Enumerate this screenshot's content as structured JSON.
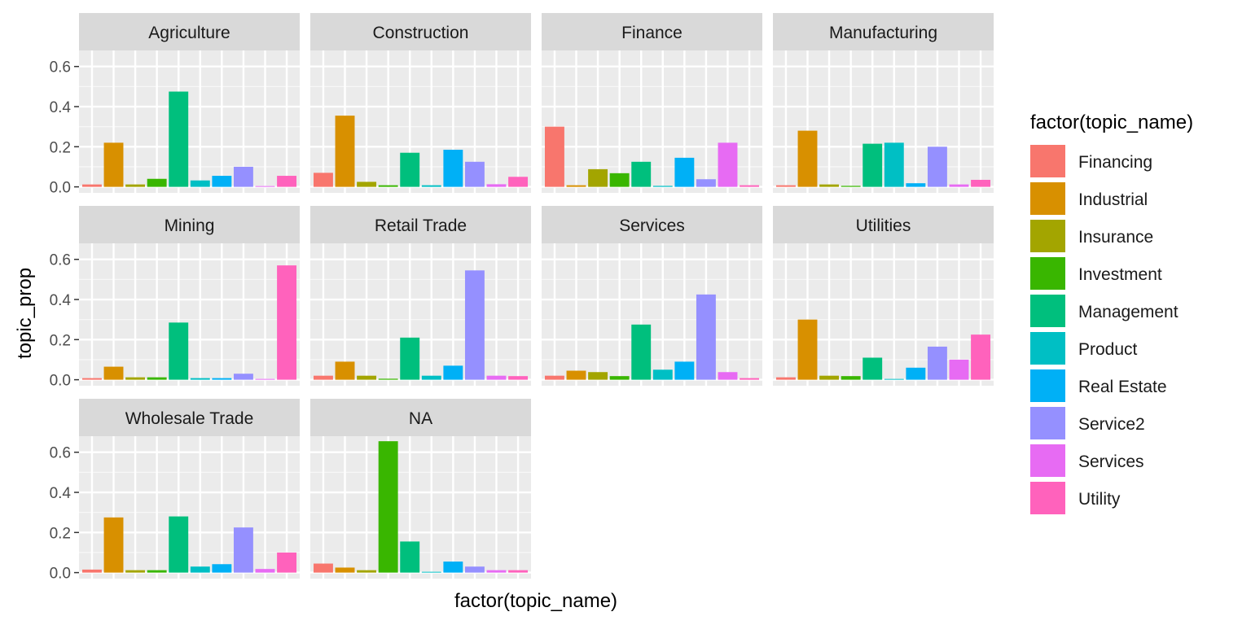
{
  "chart_data": {
    "type": "bar",
    "xlabel": "factor(topic_name)",
    "ylabel": "topic_prop",
    "ylim": [
      -0.03,
      0.68
    ],
    "yticks": [
      0.0,
      0.2,
      0.4,
      0.6
    ],
    "ytick_labels": [
      "0.0",
      "0.2",
      "0.4",
      "0.6"
    ],
    "grid": true,
    "legend": {
      "title": "factor(topic_name)",
      "position": "right"
    },
    "categories": [
      "Financing",
      "Industrial",
      "Insurance",
      "Investment",
      "Management",
      "Product",
      "Real Estate",
      "Service2",
      "Services",
      "Utility"
    ],
    "colors": [
      "#F8766D",
      "#D89000",
      "#A3A500",
      "#39B600",
      "#00BF7D",
      "#00BFC4",
      "#00B0F6",
      "#9590FF",
      "#E76BF3",
      "#FF62BC"
    ],
    "panels": [
      {
        "name": "Agriculture",
        "values": [
          0.012,
          0.22,
          0.012,
          0.04,
          0.475,
          0.032,
          0.055,
          0.1,
          0.004,
          0.055
        ]
      },
      {
        "name": "Construction",
        "values": [
          0.07,
          0.355,
          0.025,
          0.008,
          0.17,
          0.008,
          0.185,
          0.125,
          0.013,
          0.05
        ]
      },
      {
        "name": "Finance",
        "values": [
          0.3,
          0.008,
          0.088,
          0.068,
          0.125,
          0.005,
          0.145,
          0.038,
          0.22,
          0.008
        ]
      },
      {
        "name": "Manufacturing",
        "values": [
          0.008,
          0.28,
          0.012,
          0.005,
          0.215,
          0.22,
          0.018,
          0.2,
          0.012,
          0.035
        ]
      },
      {
        "name": "Mining",
        "values": [
          0.008,
          0.065,
          0.012,
          0.012,
          0.285,
          0.008,
          0.008,
          0.03,
          0.004,
          0.57
        ]
      },
      {
        "name": "Retail Trade",
        "values": [
          0.02,
          0.09,
          0.02,
          0.005,
          0.21,
          0.02,
          0.07,
          0.545,
          0.02,
          0.018
        ]
      },
      {
        "name": "Services",
        "values": [
          0.02,
          0.045,
          0.038,
          0.018,
          0.275,
          0.05,
          0.09,
          0.425,
          0.038,
          0.008
        ]
      },
      {
        "name": "Utilities",
        "values": [
          0.012,
          0.3,
          0.02,
          0.018,
          0.11,
          0.004,
          0.06,
          0.165,
          0.1,
          0.225
        ]
      },
      {
        "name": "Wholesale Trade",
        "values": [
          0.015,
          0.275,
          0.012,
          0.012,
          0.28,
          0.03,
          0.042,
          0.225,
          0.018,
          0.1
        ]
      },
      {
        "name": "NA",
        "values": [
          0.045,
          0.025,
          0.012,
          0.655,
          0.155,
          0.004,
          0.055,
          0.03,
          0.012,
          0.012
        ]
      }
    ]
  }
}
